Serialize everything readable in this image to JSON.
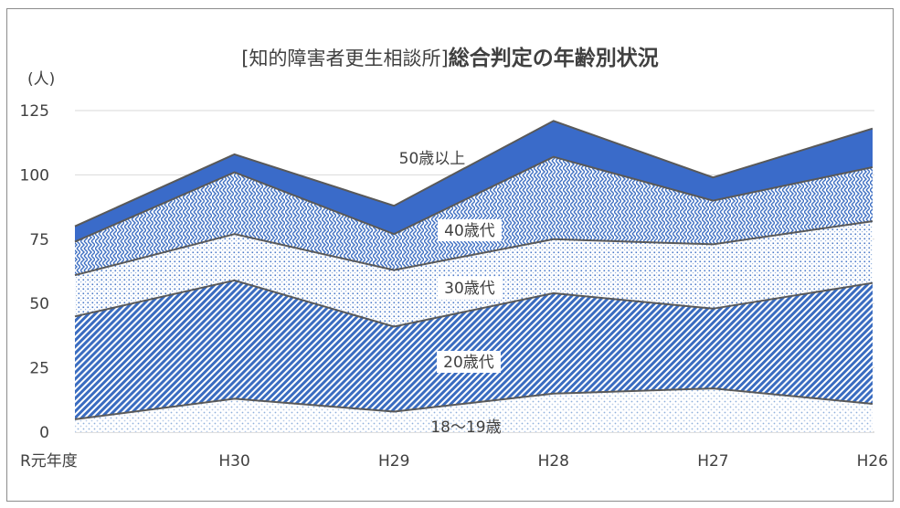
{
  "chart_data": {
    "type": "area",
    "stacked": true,
    "title_prefix": "[知的障害者更生相談所]",
    "title": "総合判定の年齢別状況",
    "unit_label": "(人)",
    "categories": [
      "R元年度",
      "H30",
      "H29",
      "H28",
      "H27",
      "H26"
    ],
    "ylim": [
      0,
      125
    ],
    "yticks": [
      0,
      25,
      50,
      75,
      100,
      125
    ],
    "grid": true,
    "legend": "inline",
    "series": [
      {
        "name": "18〜19歳",
        "values": [
          5,
          13,
          8,
          15,
          17,
          11
        ],
        "color": "#b7cbe8",
        "pattern": "dots"
      },
      {
        "name": "20歳代",
        "values": [
          40,
          46,
          33,
          39,
          31,
          47
        ],
        "color": "#3a6cc0",
        "pattern": "diag"
      },
      {
        "name": "30歳代",
        "values": [
          16,
          18,
          22,
          21,
          25,
          24
        ],
        "color": "#4a78c8",
        "pattern": "dots-dense"
      },
      {
        "name": "40歳代",
        "values": [
          13,
          24,
          14,
          32,
          17,
          21
        ],
        "color": "#3e6fc2",
        "pattern": "weave"
      },
      {
        "name": "50歳以上",
        "values": [
          6,
          7,
          11,
          14,
          9,
          15
        ],
        "color": "#3a6bc9",
        "pattern": "solid"
      }
    ]
  }
}
